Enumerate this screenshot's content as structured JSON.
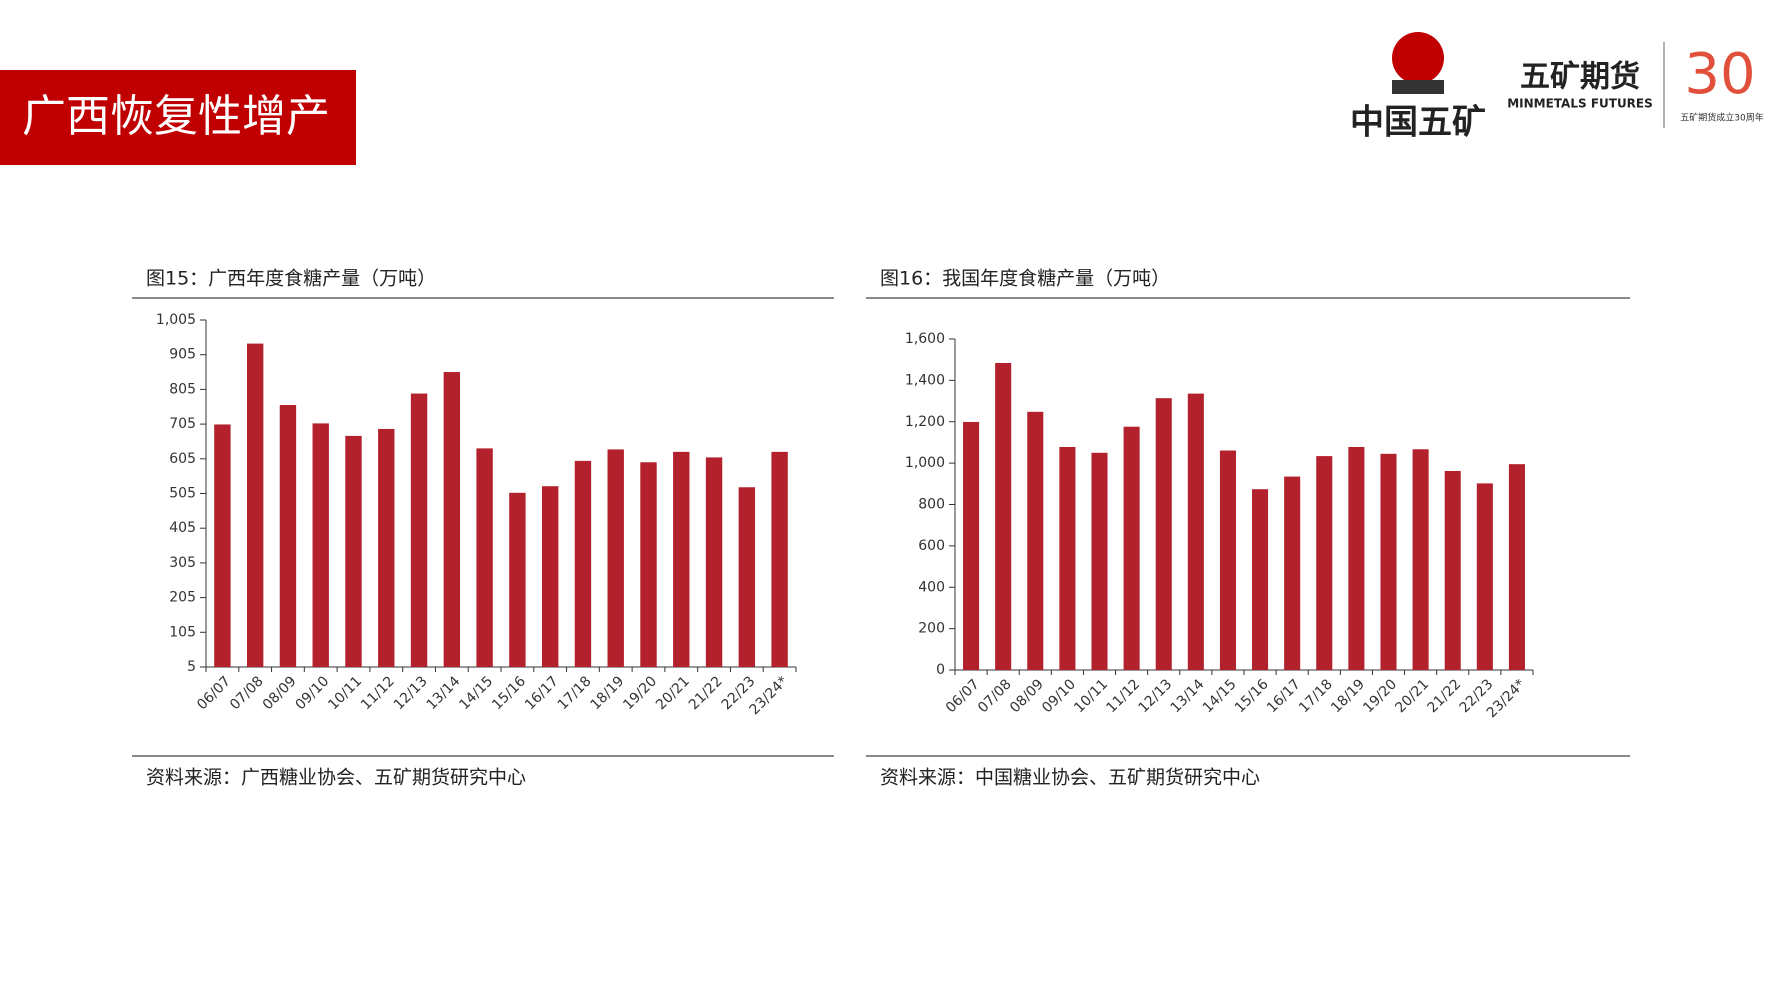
{
  "header": {
    "title": "广西恢复性增产"
  },
  "logos": {
    "group": "中国五矿",
    "company_cn": "五矿期货",
    "company_en": "MINMETALS FUTURES",
    "anniversary": "30",
    "anniversary_caption": "五矿期货成立30周年"
  },
  "chart_data": [
    {
      "type": "bar",
      "title": "图15：广西年度食糖产量（万吨）",
      "source": "资料来源：广西糖业协会、五矿期货研究中心",
      "categories": [
        "06/07",
        "07/08",
        "08/09",
        "09/10",
        "10/11",
        "11/12",
        "12/13",
        "13/14",
        "14/15",
        "15/16",
        "16/17",
        "17/18",
        "18/19",
        "19/20",
        "20/21",
        "21/22",
        "22/23",
        "23/24*"
      ],
      "values": [
        704,
        937,
        760,
        707,
        671,
        691,
        793,
        855,
        635,
        507,
        526,
        599,
        632,
        595,
        625,
        609,
        523,
        625
      ],
      "color": "#b3212c",
      "ylim": [
        5,
        1005
      ],
      "yticks": [
        5,
        105,
        205,
        305,
        405,
        505,
        605,
        705,
        805,
        905,
        {
          "value": 1005,
          "label": "1,005"
        }
      ]
    },
    {
      "type": "bar",
      "title": "图16：我国年度食糖产量（万吨）",
      "source": "资料来源：中国糖业协会、五矿期货研究中心",
      "categories": [
        "06/07",
        "07/08",
        "08/09",
        "09/10",
        "10/11",
        "11/12",
        "12/13",
        "13/14",
        "14/15",
        "15/16",
        "16/17",
        "17/18",
        "18/19",
        "19/20",
        "20/21",
        "21/22",
        "22/23",
        "23/24*"
      ],
      "values": [
        1199,
        1484,
        1248,
        1078,
        1050,
        1176,
        1314,
        1336,
        1061,
        874,
        935,
        1034,
        1078,
        1045,
        1067,
        962,
        902,
        995
      ],
      "color": "#b3212c",
      "ylim": [
        0,
        1600
      ],
      "yticks": [
        0,
        200,
        400,
        600,
        800,
        {
          "value": 1000,
          "label": "1,000"
        },
        {
          "value": 1200,
          "label": "1,200"
        },
        {
          "value": 1400,
          "label": "1,400"
        },
        {
          "value": 1600,
          "label": "1,600"
        }
      ]
    }
  ]
}
